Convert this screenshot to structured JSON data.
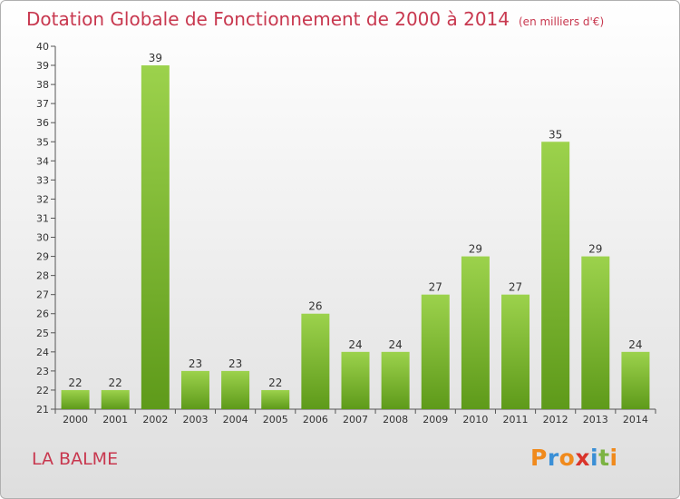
{
  "header": {
    "title": "Dotation Globale de Fonctionnement de 2000 à 2014",
    "subtitle": "(en milliers d'€)"
  },
  "footer": {
    "commune": "LA BALME",
    "brand": "Proxiti"
  },
  "colors": {
    "accent": "#c8384f",
    "bar_top": "#9cd24c",
    "bar_bottom": "#5e9a1a"
  },
  "chart_data": {
    "type": "bar",
    "title": "Dotation Globale de Fonctionnement de 2000 à 2014",
    "subtitle": "(en milliers d'€)",
    "xlabel": "",
    "ylabel": "",
    "categories": [
      "2000",
      "2001",
      "2002",
      "2003",
      "2004",
      "2005",
      "2006",
      "2007",
      "2008",
      "2009",
      "2010",
      "2011",
      "2012",
      "2013",
      "2014"
    ],
    "values": [
      22,
      22,
      39,
      23,
      23,
      22,
      26,
      24,
      24,
      27,
      29,
      27,
      35,
      29,
      24
    ],
    "ylim": [
      21,
      40
    ],
    "yticks": [
      21,
      22,
      23,
      24,
      25,
      26,
      27,
      28,
      29,
      30,
      31,
      32,
      33,
      34,
      35,
      36,
      37,
      38,
      39,
      40
    ],
    "grid": false,
    "data_labels": true
  }
}
